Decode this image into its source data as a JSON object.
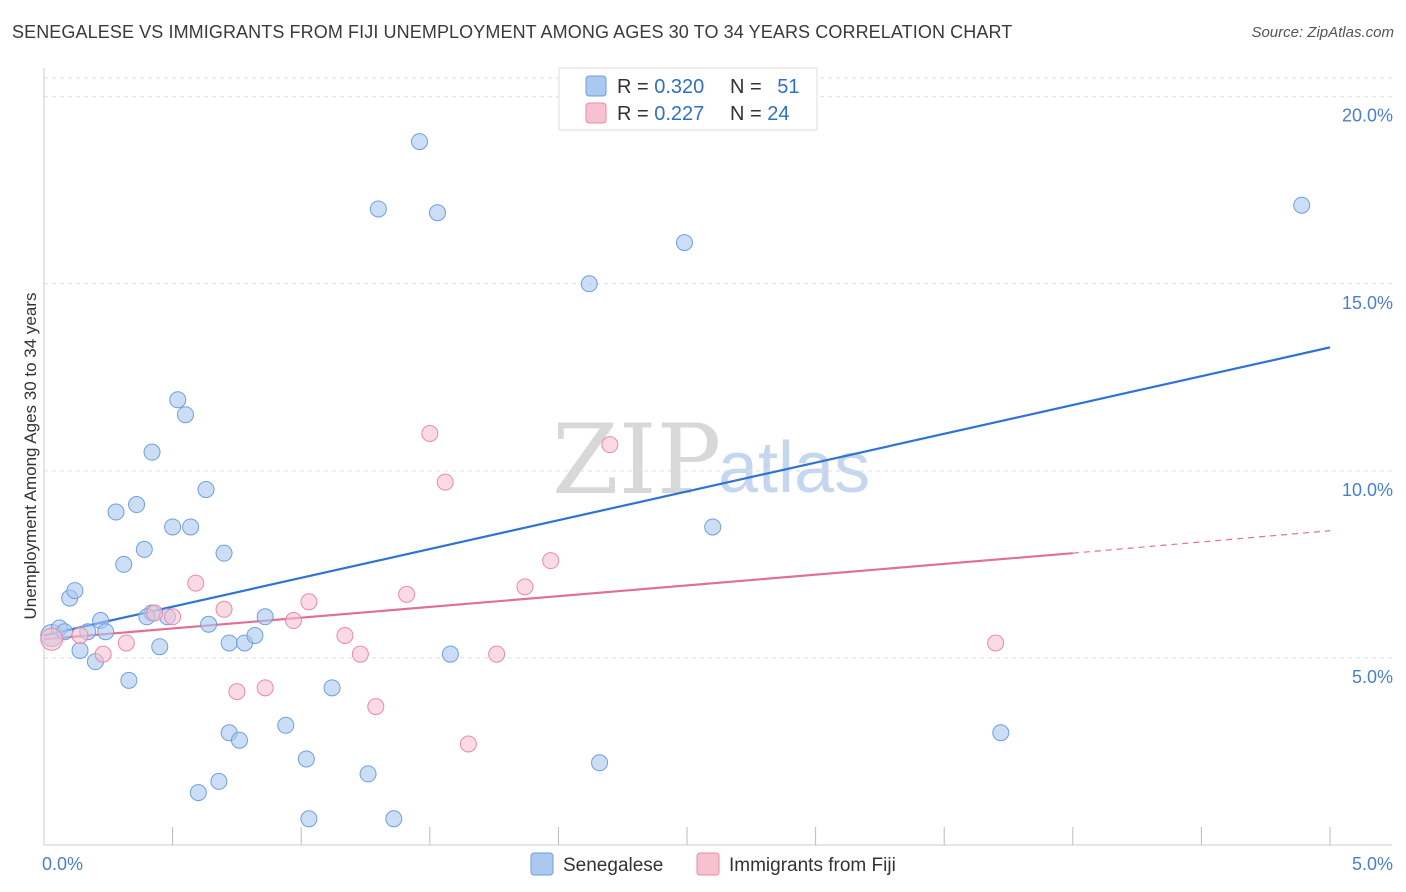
{
  "title": "SENEGALESE VS IMMIGRANTS FROM FIJI UNEMPLOYMENT AMONG AGES 30 TO 34 YEARS CORRELATION CHART",
  "source": "Source: ZipAtlas.com",
  "watermark": {
    "zip": "ZIP",
    "atlas": "atlas"
  },
  "colors": {
    "blue_fill": "#aac8f0",
    "blue_stroke": "#6f9fdc",
    "blue_line": "#2f74d0",
    "pink_fill": "#f6c2d0",
    "pink_stroke": "#e98aa6",
    "pink_line": "#e07098",
    "value_text": "#2f6fc4",
    "grid": "#dddddd"
  },
  "legend": {
    "rows": [
      {
        "r_label": "R = ",
        "r_value": "0.320",
        "n_label": "N = ",
        "n_value": "51"
      },
      {
        "r_label": "R = ",
        "r_value": "0.227",
        "n_label": "N = ",
        "n_value": "24"
      }
    ]
  },
  "chart_data": {
    "type": "scatter",
    "title": "SENEGALESE VS IMMIGRANTS FROM FIJI UNEMPLOYMENT AMONG AGES 30 TO 34 YEARS CORRELATION CHART",
    "xlabel": "",
    "ylabel": "Unemployment Among Ages 30 to 34 years",
    "xlim": [
      0,
      5
    ],
    "ylim": [
      0,
      20.5
    ],
    "x_ticks": [
      {
        "value": 0,
        "label": "0.0%"
      },
      {
        "value": 5,
        "label": "5.0%"
      }
    ],
    "y_ticks": [
      {
        "value": 5,
        "label": "5.0%"
      },
      {
        "value": 10,
        "label": "10.0%"
      },
      {
        "value": 15,
        "label": "15.0%"
      },
      {
        "value": 20,
        "label": "20.0%"
      }
    ],
    "series": [
      {
        "name": "Senegalese",
        "color": "#aac8f0",
        "r": 0.32,
        "n": 51,
        "trend": {
          "x0": 0.0,
          "y0": 5.6,
          "x1": 5.0,
          "y1": 13.3
        },
        "points": [
          [
            0.03,
            5.6
          ],
          [
            0.06,
            5.8
          ],
          [
            0.08,
            5.7
          ],
          [
            0.1,
            6.6
          ],
          [
            0.12,
            6.8
          ],
          [
            0.14,
            5.2
          ],
          [
            0.17,
            5.7
          ],
          [
            0.2,
            4.9
          ],
          [
            0.22,
            6.0
          ],
          [
            0.24,
            5.7
          ],
          [
            0.28,
            8.9
          ],
          [
            0.31,
            7.5
          ],
          [
            0.33,
            4.4
          ],
          [
            0.36,
            9.1
          ],
          [
            0.39,
            7.9
          ],
          [
            0.42,
            6.2
          ],
          [
            0.42,
            10.5
          ],
          [
            0.45,
            5.3
          ],
          [
            0.48,
            6.1
          ],
          [
            0.5,
            8.5
          ],
          [
            0.52,
            11.9
          ],
          [
            0.55,
            11.5
          ],
          [
            0.57,
            8.5
          ],
          [
            0.6,
            1.4
          ],
          [
            0.63,
            9.5
          ],
          [
            0.64,
            5.9
          ],
          [
            0.68,
            1.7
          ],
          [
            0.7,
            7.8
          ],
          [
            0.72,
            3.0
          ],
          [
            0.72,
            5.4
          ],
          [
            0.76,
            2.8
          ],
          [
            0.78,
            5.4
          ],
          [
            0.82,
            5.6
          ],
          [
            0.86,
            6.1
          ],
          [
            0.94,
            3.2
          ],
          [
            1.02,
            2.3
          ],
          [
            1.03,
            0.7
          ],
          [
            1.12,
            4.2
          ],
          [
            1.26,
            1.9
          ],
          [
            1.3,
            17.0
          ],
          [
            1.36,
            0.7
          ],
          [
            1.46,
            18.8
          ],
          [
            1.53,
            16.9
          ],
          [
            1.58,
            5.1
          ],
          [
            2.12,
            15.0
          ],
          [
            2.16,
            2.2
          ],
          [
            2.49,
            16.1
          ],
          [
            2.6,
            8.5
          ],
          [
            3.72,
            3.0
          ],
          [
            4.89,
            17.1
          ],
          [
            0.4,
            6.1
          ]
        ]
      },
      {
        "name": "Immigrants from Fiji",
        "color": "#f6c2d0",
        "r": 0.227,
        "n": 24,
        "trend": {
          "x0": 0.0,
          "y0": 5.5,
          "x1": 4.0,
          "y1": 7.8,
          "dash_to_x": 5.0,
          "dash_to_y": 8.4
        },
        "points": [
          [
            0.03,
            5.5
          ],
          [
            0.14,
            5.6
          ],
          [
            0.23,
            5.1
          ],
          [
            0.32,
            5.4
          ],
          [
            0.43,
            6.2
          ],
          [
            0.5,
            6.1
          ],
          [
            0.59,
            7.0
          ],
          [
            0.7,
            6.3
          ],
          [
            0.75,
            4.1
          ],
          [
            0.86,
            4.2
          ],
          [
            0.97,
            6.0
          ],
          [
            1.03,
            6.5
          ],
          [
            1.17,
            5.6
          ],
          [
            1.23,
            5.1
          ],
          [
            1.29,
            3.7
          ],
          [
            1.41,
            6.7
          ],
          [
            1.5,
            11.0
          ],
          [
            1.56,
            9.7
          ],
          [
            1.65,
            2.7
          ],
          [
            1.76,
            5.1
          ],
          [
            1.87,
            6.9
          ],
          [
            1.97,
            7.6
          ],
          [
            2.2,
            10.7
          ],
          [
            3.7,
            5.4
          ]
        ]
      }
    ]
  }
}
